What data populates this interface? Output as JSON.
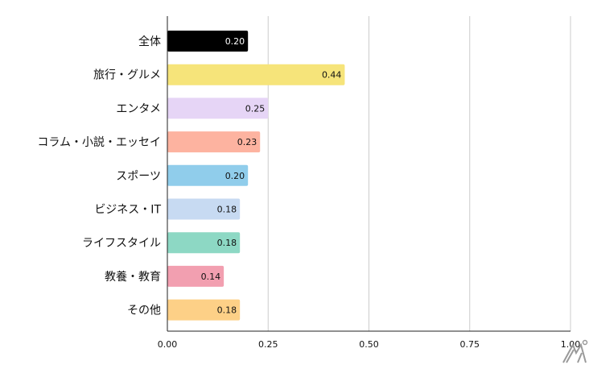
{
  "chart_data": {
    "type": "bar",
    "orientation": "horizontal",
    "categories": [
      "全体",
      "旅行・グルメ",
      "エンタメ",
      "コラム・小説・エッセイ",
      "スポーツ",
      "ビジネス・IT",
      "ライフスタイル",
      "教養・教育",
      "その他"
    ],
    "values": [
      0.2,
      0.44,
      0.25,
      0.23,
      0.2,
      0.18,
      0.18,
      0.14,
      0.18
    ],
    "value_labels": [
      "0.20",
      "0.44",
      "0.25",
      "0.23",
      "0.20",
      "0.18",
      "0.18",
      "0.14",
      "0.18"
    ],
    "colors": [
      "#000000",
      "#f6e47a",
      "#e6d5f6",
      "#fdb3a0",
      "#90cdeb",
      "#c7daf2",
      "#8dd8c4",
      "#f29fb0",
      "#fdd087"
    ],
    "xlim": [
      0,
      1
    ],
    "xticks": [
      "0.00",
      "0.25",
      "0.50",
      "0.75",
      "1.00"
    ],
    "grid": true,
    "title": "",
    "xlabel": "",
    "ylabel": ""
  },
  "logo": {
    "text": "M"
  }
}
